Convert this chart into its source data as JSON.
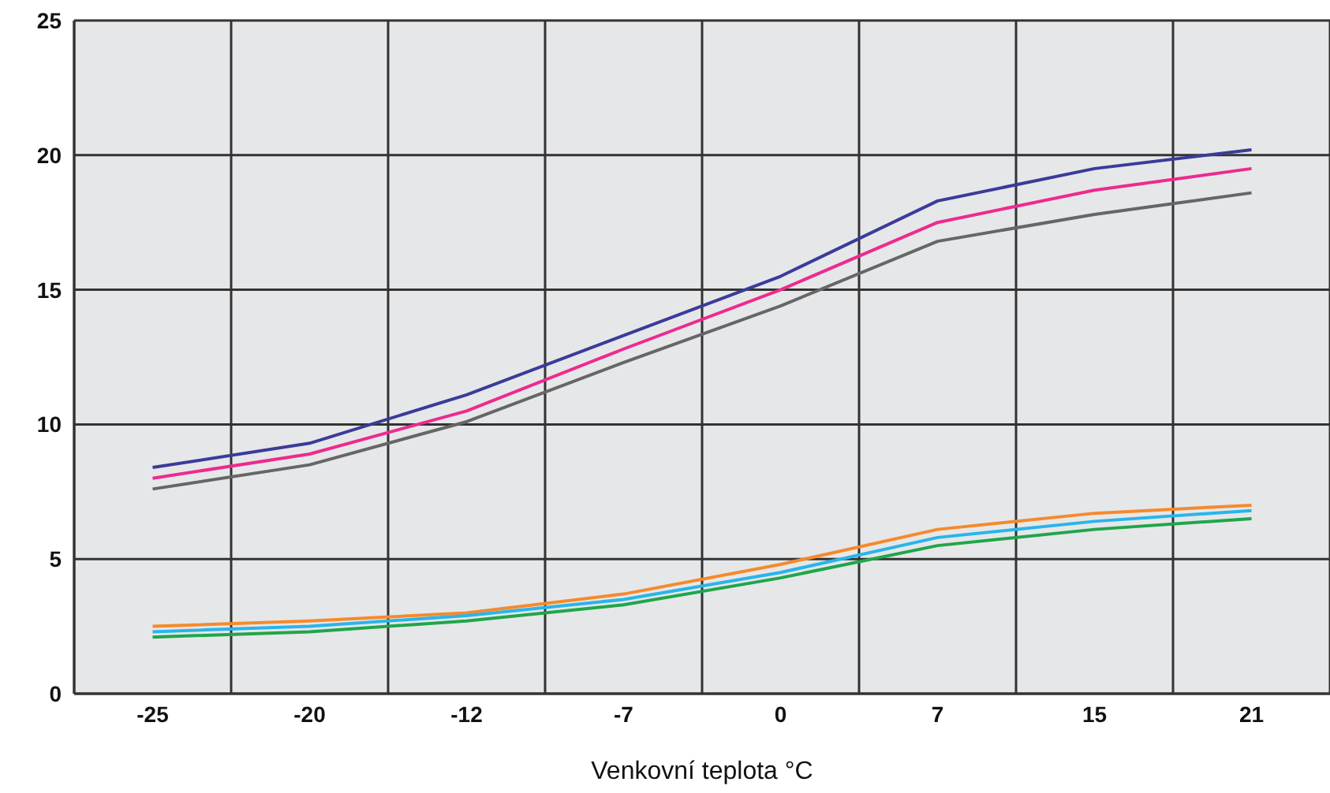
{
  "chart_data": {
    "type": "line",
    "xlabel": "Venkovní teplota °C",
    "categories": [
      "-25",
      "-20",
      "-12",
      "-7",
      "0",
      "7",
      "15",
      "21"
    ],
    "series": [
      {
        "color": "#3b3b9a",
        "values": [
          8.4,
          9.3,
          11.1,
          13.3,
          15.5,
          18.3,
          19.5,
          20.2
        ]
      },
      {
        "color": "#ee2a8e",
        "values": [
          8.0,
          8.9,
          10.5,
          12.8,
          15.0,
          17.5,
          18.7,
          19.5
        ]
      },
      {
        "color": "#666666",
        "values": [
          7.6,
          8.5,
          10.1,
          12.3,
          14.4,
          16.8,
          17.8,
          18.6
        ]
      },
      {
        "color": "#f58a2c",
        "values": [
          2.5,
          2.7,
          3.0,
          3.7,
          4.8,
          6.1,
          6.7,
          7.0
        ]
      },
      {
        "color": "#29b5ea",
        "values": [
          2.3,
          2.5,
          2.9,
          3.5,
          4.5,
          5.8,
          6.4,
          6.8
        ]
      },
      {
        "color": "#1fa64a",
        "values": [
          2.1,
          2.3,
          2.7,
          3.3,
          4.3,
          5.5,
          6.1,
          6.5
        ]
      }
    ],
    "ylim": [
      0,
      25
    ],
    "yticks": [
      0,
      5,
      10,
      15,
      20,
      25
    ],
    "grid": true,
    "marker": "none",
    "line_style": "solid"
  }
}
